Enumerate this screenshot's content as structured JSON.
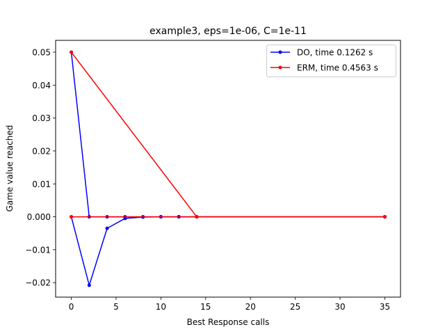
{
  "chart_data": {
    "type": "line",
    "title": "example3, eps=1e-06, C=1e-11",
    "xlabel": "Best Response calls",
    "ylabel": "Game value reached",
    "xlim": [
      -1.75,
      36.75
    ],
    "ylim": [
      -0.0244,
      0.0536
    ],
    "xticks": [
      0,
      5,
      10,
      15,
      20,
      25,
      30,
      35
    ],
    "xtick_labels": [
      "0",
      "5",
      "10",
      "15",
      "20",
      "25",
      "30",
      "35"
    ],
    "yticks": [
      -0.02,
      -0.01,
      0.0,
      0.01,
      0.02,
      0.03,
      0.04,
      0.05
    ],
    "ytick_labels": [
      "−0.02",
      "−0.01",
      "0.000",
      "0.01",
      "0.02",
      "0.03",
      "0.04",
      "0.05"
    ],
    "grid": false,
    "legend_position": "top-right",
    "series": [
      {
        "name": "DO, time 0.1262 s",
        "color": "#0000ff",
        "upper": {
          "x": [
            0,
            2,
            4,
            6,
            8,
            10,
            12,
            14,
            35
          ],
          "y": [
            0.05,
            0.0,
            0.0,
            0.0,
            0.0,
            0.0,
            0.0,
            0.0,
            0.0
          ]
        },
        "lower": {
          "x": [
            0,
            2,
            4,
            6,
            8,
            10,
            12,
            14,
            35
          ],
          "y": [
            0.0,
            -0.0208,
            -0.0035,
            -0.0005,
            -0.0001,
            0.0,
            0.0,
            0.0,
            0.0
          ]
        }
      },
      {
        "name": "ERM, time 0.4563 s",
        "color": "#ff0000",
        "upper": {
          "x": [
            0,
            14,
            35
          ],
          "y": [
            0.05,
            0.0,
            0.0
          ]
        },
        "lower": {
          "x": [
            0,
            14,
            35
          ],
          "y": [
            0.0,
            0.0,
            0.0
          ]
        }
      }
    ]
  }
}
